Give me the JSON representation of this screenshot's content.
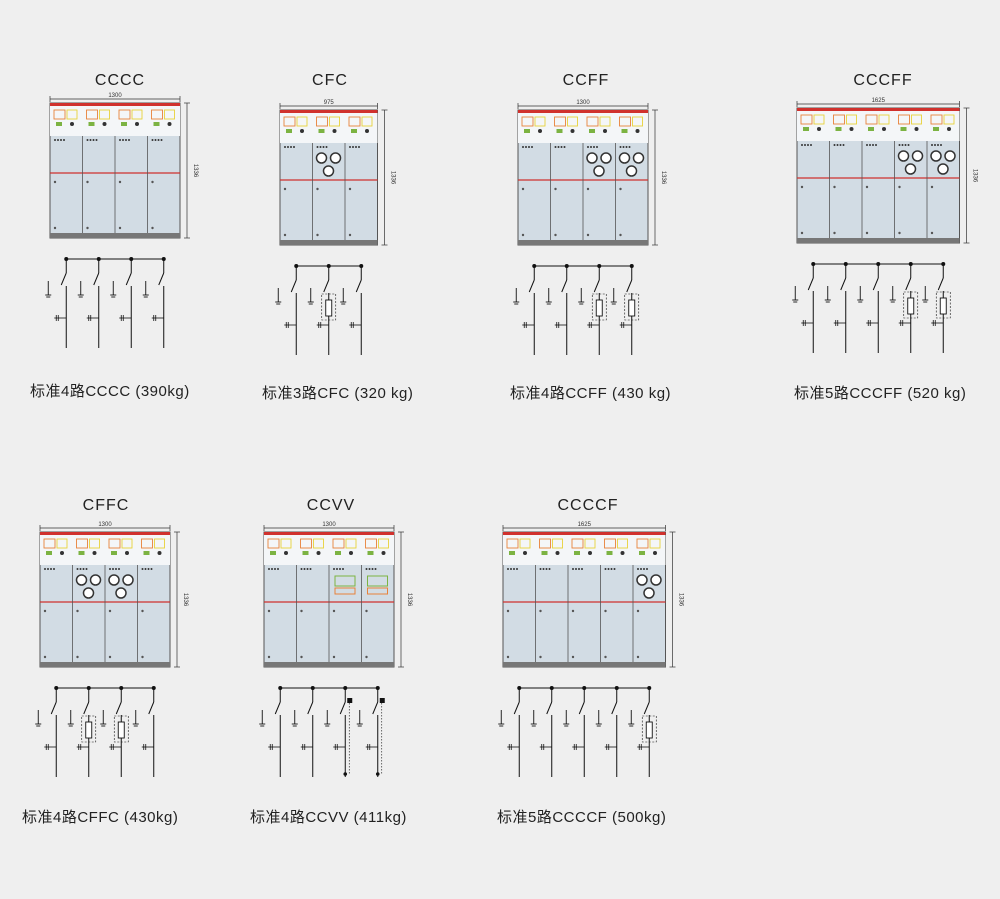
{
  "units": [
    {
      "id": "cccc",
      "title": "CCCC",
      "width_dim": "1300",
      "height_dim": "1336",
      "caption": "标准4路CCCC (390kg)",
      "types": "CCCC"
    },
    {
      "id": "cfc",
      "title": "CFC",
      "width_dim": "975",
      "height_dim": "1336",
      "caption": "标准3路CFC (320 kg)",
      "types": "CFC"
    },
    {
      "id": "ccff",
      "title": "CCFF",
      "width_dim": "1300",
      "height_dim": "1336",
      "caption": "标准4路CCFF (430 kg)",
      "types": "CCFF"
    },
    {
      "id": "cccff",
      "title": "CCCFF",
      "width_dim": "1625",
      "height_dim": "1336",
      "caption": "标准5路CCCFF  (520 kg)",
      "types": "CCCFF"
    },
    {
      "id": "cffc",
      "title": "CFFC",
      "width_dim": "1300",
      "height_dim": "1336",
      "caption": "标准4路CFFC  (430kg)",
      "types": "CFFC"
    },
    {
      "id": "ccvv",
      "title": "CCVV",
      "width_dim": "1300",
      "height_dim": "1336",
      "caption": "标准4路CCVV  (411kg)",
      "types": "CCVV"
    },
    {
      "id": "ccccf",
      "title": "CCCCF",
      "width_dim": "1625",
      "height_dim": "1336",
      "caption": "标准5路CCCCF  (500kg)",
      "types": "CCCCF"
    }
  ],
  "colors": {
    "panel": "#d2dce4",
    "frame": "#555555",
    "red_line": "#d0312d",
    "accent_orange": "#e8823a",
    "accent_yellow": "#e8d23a",
    "accent_green": "#7cb342"
  }
}
